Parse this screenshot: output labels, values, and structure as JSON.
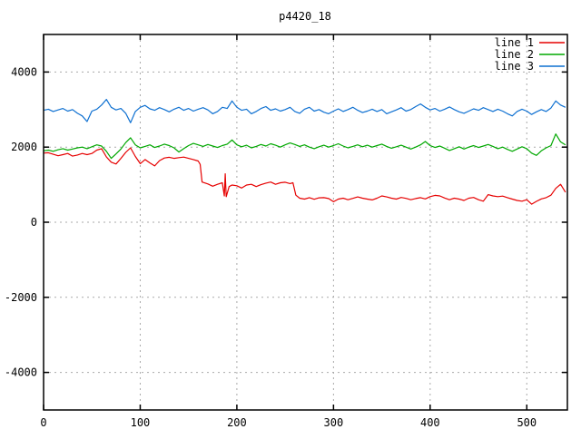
{
  "window": {
    "title": "p4420_18"
  },
  "colors": {
    "background": "#ffffff",
    "border": "#000000",
    "grid": "#a9a9a9",
    "text": "#000000"
  },
  "chart_data": {
    "type": "line",
    "title": "p4420_18",
    "xlabel": "",
    "ylabel": "",
    "xlim": [
      0,
      542
    ],
    "ylim": [
      -5000,
      5000
    ],
    "x_ticks": [
      0,
      100,
      200,
      300,
      400,
      500
    ],
    "y_ticks": [
      -4000,
      -2000,
      0,
      2000,
      4000
    ],
    "grid": true,
    "legend_position": "top-right-inside",
    "series": [
      {
        "name": "line 1",
        "color": "#e60000",
        "x": [
          0,
          5,
          10,
          15,
          20,
          25,
          30,
          35,
          40,
          45,
          50,
          55,
          60,
          65,
          70,
          75,
          80,
          85,
          90,
          95,
          100,
          105,
          110,
          115,
          120,
          125,
          130,
          135,
          140,
          145,
          150,
          155,
          160,
          162,
          164,
          170,
          175,
          180,
          185,
          187,
          188,
          189,
          192,
          195,
          200,
          205,
          210,
          215,
          220,
          225,
          230,
          235,
          240,
          245,
          250,
          255,
          258,
          261,
          265,
          270,
          275,
          280,
          285,
          290,
          295,
          300,
          305,
          310,
          315,
          320,
          325,
          330,
          335,
          340,
          345,
          350,
          355,
          360,
          365,
          370,
          375,
          380,
          385,
          390,
          395,
          400,
          405,
          410,
          415,
          420,
          425,
          430,
          435,
          440,
          445,
          450,
          455,
          460,
          465,
          470,
          475,
          480,
          485,
          490,
          495,
          500,
          505,
          510,
          515,
          520,
          525,
          530,
          535,
          540
        ],
        "y": [
          1840,
          1850,
          1810,
          1770,
          1800,
          1830,
          1760,
          1790,
          1830,
          1800,
          1830,
          1920,
          1960,
          1740,
          1600,
          1550,
          1700,
          1860,
          1980,
          1750,
          1560,
          1670,
          1580,
          1500,
          1640,
          1710,
          1730,
          1700,
          1720,
          1735,
          1700,
          1670,
          1630,
          1540,
          1070,
          1020,
          960,
          1010,
          1050,
          700,
          1290,
          680,
          950,
          990,
          970,
          910,
          990,
          1010,
          950,
          1000,
          1040,
          1070,
          1010,
          1050,
          1065,
          1030,
          1050,
          720,
          640,
          615,
          655,
          610,
          650,
          655,
          630,
          545,
          615,
          640,
          600,
          635,
          675,
          640,
          615,
          595,
          640,
          700,
          675,
          640,
          615,
          660,
          635,
          600,
          630,
          655,
          620,
          680,
          715,
          700,
          645,
          600,
          640,
          615,
          580,
          640,
          660,
          600,
          560,
          735,
          700,
          680,
          695,
          655,
          615,
          580,
          560,
          600,
          480,
          555,
          620,
          655,
          720,
          900,
          1010,
          800
        ]
      },
      {
        "name": "line 2",
        "color": "#00a800",
        "x_start": 0,
        "x_step": 5,
        "y": [
          1900,
          1920,
          1890,
          1930,
          1960,
          1920,
          1950,
          1980,
          2000,
          1960,
          2010,
          2060,
          2030,
          1890,
          1700,
          1820,
          1950,
          2120,
          2250,
          2060,
          1980,
          2020,
          2060,
          1990,
          2030,
          2080,
          2040,
          1980,
          1870,
          1960,
          2040,
          2100,
          2060,
          2020,
          2070,
          2030,
          1990,
          2040,
          2080,
          2190,
          2060,
          2010,
          2050,
          1980,
          2020,
          2070,
          2030,
          2090,
          2050,
          2000,
          2060,
          2110,
          2070,
          2020,
          2060,
          2000,
          1960,
          2010,
          2050,
          2000,
          2040,
          2090,
          2030,
          1980,
          2020,
          2060,
          2010,
          2050,
          2000,
          2040,
          2080,
          2020,
          1970,
          2010,
          2050,
          2000,
          1950,
          2000,
          2060,
          2150,
          2040,
          1990,
          2030,
          1970,
          1910,
          1960,
          2010,
          1950,
          2000,
          2040,
          1990,
          2030,
          2070,
          2020,
          1960,
          2000,
          1940,
          1890,
          1950,
          2010,
          1960,
          1840,
          1780,
          1900,
          1980,
          2040,
          2350,
          2140,
          2060
        ]
      },
      {
        "name": "line 3",
        "color": "#0e70d1",
        "x_start": 0,
        "x_step": 5,
        "y": [
          2980,
          3010,
          2950,
          2990,
          3030,
          2960,
          3000,
          2900,
          2830,
          2680,
          2960,
          3010,
          3120,
          3270,
          3060,
          2990,
          3030,
          2900,
          2650,
          2950,
          3060,
          3110,
          3020,
          2980,
          3050,
          3000,
          2940,
          3010,
          3060,
          2980,
          3030,
          2960,
          3010,
          3050,
          2990,
          2890,
          2950,
          3060,
          3030,
          3230,
          3060,
          2980,
          3010,
          2890,
          2950,
          3030,
          3080,
          2980,
          3020,
          2960,
          3000,
          3060,
          2950,
          2900,
          3010,
          3060,
          2960,
          3000,
          2930,
          2890,
          2960,
          3020,
          2950,
          3000,
          3060,
          2980,
          2920,
          2960,
          3010,
          2950,
          3000,
          2890,
          2940,
          2990,
          3050,
          2960,
          3000,
          3080,
          3150,
          3060,
          2990,
          3030,
          2960,
          3010,
          3070,
          3000,
          2940,
          2900,
          2960,
          3020,
          2980,
          3050,
          3000,
          2950,
          3010,
          2960,
          2890,
          2830,
          2950,
          3010,
          2960,
          2870,
          2940,
          3000,
          2950,
          3040,
          3230,
          3120,
          3060
        ]
      }
    ]
  }
}
